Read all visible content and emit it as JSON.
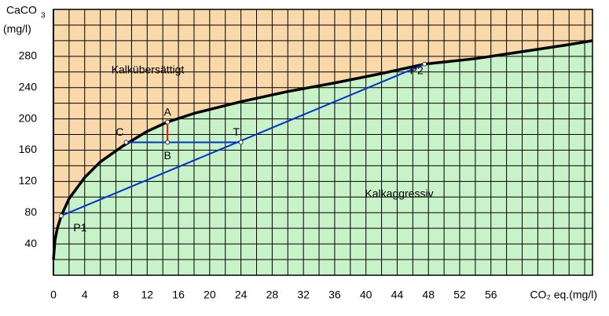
{
  "chart_data": {
    "type": "line",
    "xlabel": "CO₂ eq.(mg/l)",
    "ylabel": "CaCO",
    "ylabel_sub": "3",
    "ylabel_unit": "(mg/l)",
    "xlim": [
      0,
      69
    ],
    "ylim": [
      0,
      340
    ],
    "xticks": [
      0,
      4,
      8,
      12,
      16,
      20,
      24,
      28,
      32,
      36,
      40,
      44,
      48,
      52,
      56
    ],
    "yticks": [
      40,
      80,
      120,
      160,
      200,
      240,
      280
    ],
    "xgrid": [
      0,
      2,
      4,
      6,
      8,
      10,
      12,
      14,
      16,
      18,
      20,
      22,
      24,
      26,
      28,
      30,
      32,
      34,
      36,
      38,
      40,
      42,
      44,
      46,
      48,
      50,
      52,
      54,
      56,
      58,
      60,
      62,
      64,
      66,
      68
    ],
    "ygrid": [
      20,
      40,
      60,
      80,
      100,
      120,
      140,
      160,
      180,
      200,
      220,
      240,
      260,
      280,
      300,
      320
    ],
    "grid": true,
    "series": [
      {
        "color": "#000000",
        "x": [
          0,
          0.2,
          0.5,
          1,
          2,
          4,
          6,
          9,
          12,
          14.6,
          18,
          24,
          30,
          36,
          42,
          47.5,
          54,
          60,
          66,
          69
        ],
        "values": [
          20,
          45,
          60,
          76,
          98,
          125,
          145,
          166,
          184,
          196,
          207,
          222,
          235,
          246,
          258,
          270,
          277,
          286,
          295,
          300
        ]
      }
    ],
    "region_colors": {
      "above": "#f9d9a9",
      "below": "#c8f2c8"
    },
    "regions": [
      "Kalkübersättigt",
      "Kalkaggressiv"
    ],
    "segments": [
      {
        "color": "#0033cc",
        "x": [
          1,
          47.5
        ],
        "y": [
          76,
          270
        ]
      },
      {
        "color": "#0033cc",
        "x": [
          9.3,
          24
        ],
        "y": [
          170,
          170
        ]
      },
      {
        "color": "#ff0000",
        "x": [
          14.6,
          14.6
        ],
        "y": [
          170,
          196
        ]
      }
    ],
    "points": [
      {
        "label": "P1",
        "x": 1,
        "y": 76
      },
      {
        "label": "P2",
        "x": 47.5,
        "y": 270
      },
      {
        "label": "A",
        "x": 14.6,
        "y": 196
      },
      {
        "label": "B",
        "x": 14.6,
        "y": 170
      },
      {
        "label": "C",
        "x": 9.3,
        "y": 170
      },
      {
        "label": "T",
        "x": 24,
        "y": 170
      }
    ]
  }
}
